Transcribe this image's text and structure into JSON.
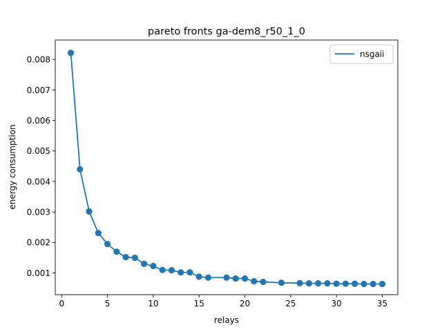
{
  "chart_data": {
    "type": "line",
    "title": "pareto fronts ga-dem8_r50_1_0",
    "xlabel": "relays",
    "ylabel": "energy consumption",
    "xlim": [
      -0.7,
      36.7
    ],
    "ylim": [
      0.00029,
      0.00864
    ],
    "xticks": [
      0,
      5,
      10,
      15,
      20,
      25,
      30,
      35
    ],
    "xtick_labels": [
      "0",
      "5",
      "10",
      "15",
      "20",
      "25",
      "30",
      "35"
    ],
    "yticks": [
      0.001,
      0.002,
      0.003,
      0.004,
      0.005,
      0.006,
      0.007,
      0.008
    ],
    "ytick_labels": [
      "0.001",
      "0.002",
      "0.003",
      "0.004",
      "0.005",
      "0.006",
      "0.007",
      "0.008"
    ],
    "grid": false,
    "legend_position": "top-right",
    "series": [
      {
        "name": "nsgaii",
        "color": "#1f77b4",
        "marker": "circle",
        "x": [
          1,
          2,
          3,
          4,
          5,
          6,
          7,
          8,
          9,
          10,
          11,
          12,
          13,
          14,
          15,
          16,
          18,
          19,
          20,
          21,
          22,
          24,
          26,
          27,
          28,
          29,
          30,
          31,
          32,
          33,
          34,
          35
        ],
        "y": [
          0.00822,
          0.0044,
          0.00302,
          0.00231,
          0.00195,
          0.0017,
          0.00152,
          0.0015,
          0.0013,
          0.00123,
          0.0011,
          0.00109,
          0.00102,
          0.00102,
          0.00088,
          0.00085,
          0.00085,
          0.00082,
          0.00082,
          0.00073,
          0.00071,
          0.00068,
          0.00067,
          0.00066,
          0.00066,
          0.00066,
          0.00065,
          0.00065,
          0.00065,
          0.00064,
          0.00064,
          0.00064
        ]
      }
    ]
  }
}
